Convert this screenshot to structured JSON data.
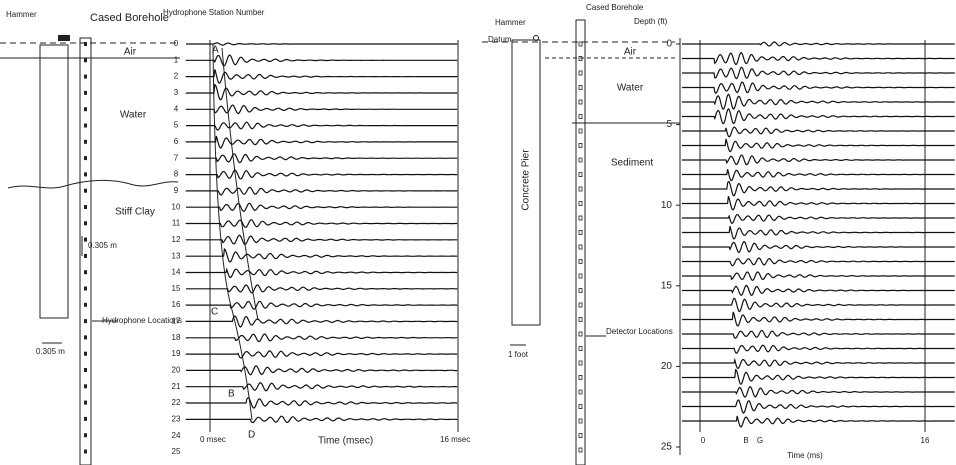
{
  "left": {
    "hammer": "Hammer",
    "borehole": "Cased Borehole",
    "station_header": "Hydrophone Station Number",
    "layers": [
      "Air",
      "Water",
      "Stiff Clay"
    ],
    "spacing": "0.305 m",
    "scale": "0.305 m",
    "hydrophones": "Hydrophone Locations",
    "stations": [
      0,
      1,
      2,
      3,
      4,
      5,
      6,
      7,
      8,
      9,
      10,
      11,
      12,
      13,
      14,
      15,
      16,
      17,
      18,
      19,
      20,
      21,
      22,
      23,
      24,
      25
    ],
    "arrivals": [
      "A",
      "C",
      "B",
      "D"
    ],
    "time_start": "0 msec",
    "time_axis": "Time (msec)",
    "time_end": "16 msec"
  },
  "right": {
    "hammer": "Hammer",
    "datum": "Datum",
    "borehole": "Cased Borehole",
    "depth_header": "Depth (ft)",
    "layers": [
      "Air",
      "Water",
      "Sediment"
    ],
    "pier": "Concrete Pier",
    "scale": "1 foot",
    "detectors": "Detector Locations",
    "depths": [
      0,
      5,
      10,
      15,
      20,
      25
    ],
    "picks": [
      "B",
      "G"
    ],
    "time_start": "0",
    "time_axis": "Time (ms)",
    "time_end": "16"
  }
}
